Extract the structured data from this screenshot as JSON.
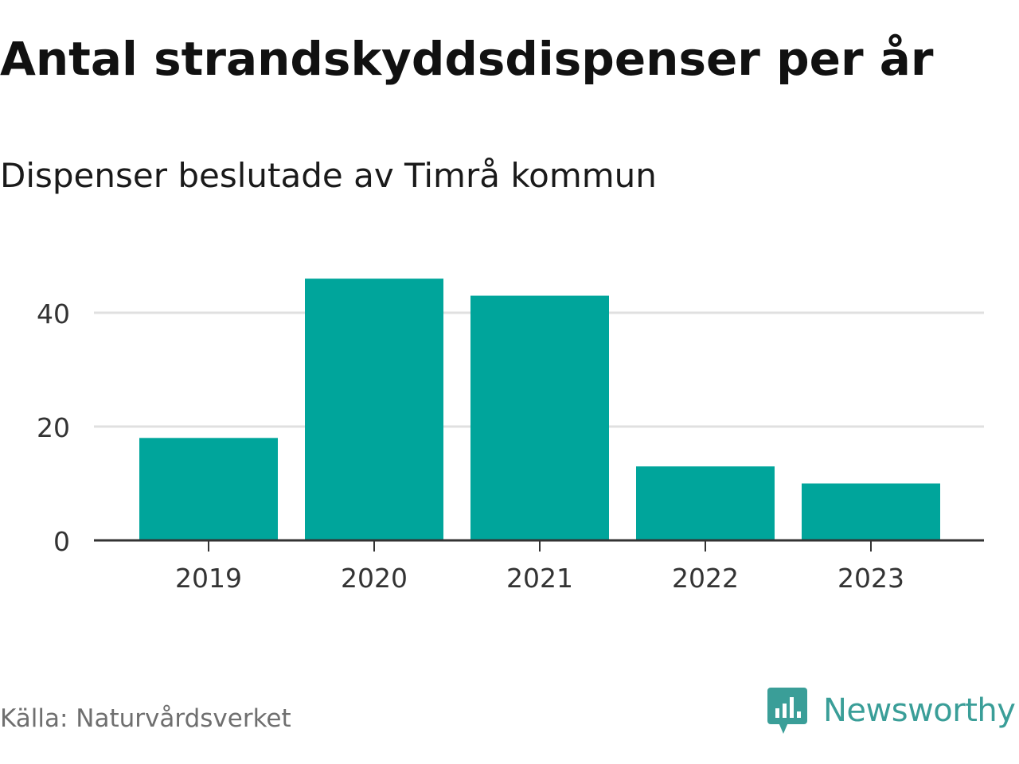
{
  "title": "Antal strandskyddsdispenser per år",
  "subtitle": "Dispenser beslutade av Timrå kommun",
  "source": "Källa: Naturvårdsverket",
  "brand": "Newsworthy",
  "colors": {
    "bar": "#00a59b",
    "grid": "#e0e0e0",
    "axis": "#333333",
    "brand": "#3a9e98"
  },
  "logo_icon": "bar-chart-speech-bubble-icon",
  "chart_data": {
    "type": "bar",
    "categories": [
      "2019",
      "2020",
      "2021",
      "2022",
      "2023"
    ],
    "values": [
      18,
      46,
      43,
      13,
      10
    ],
    "ylim": [
      0,
      50
    ],
    "yticks": [
      0,
      20,
      40
    ],
    "grid": true
  }
}
